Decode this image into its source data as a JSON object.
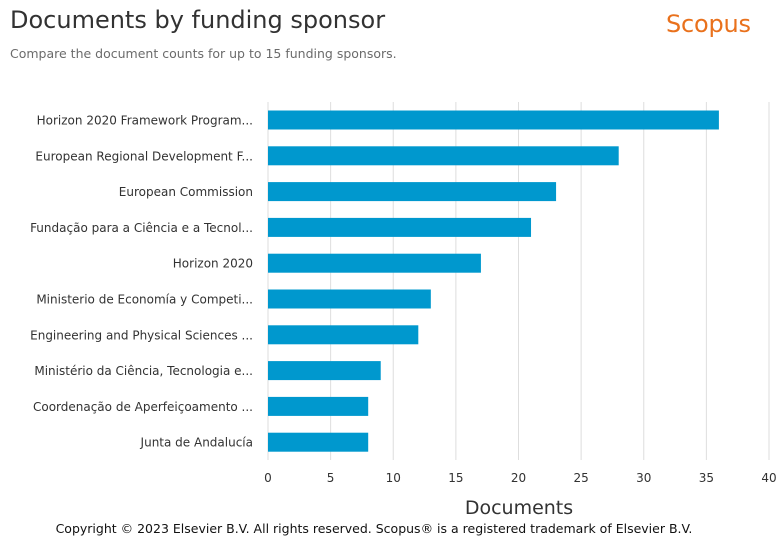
{
  "header": {
    "title": "Documents by funding sponsor",
    "subtitle": "Compare the document counts for up to 15 funding sponsors.",
    "logo": "Scopus"
  },
  "footer": {
    "copyright": "Copyright © 2023 Elsevier B.V. All rights reserved. Scopus® is a registered trademark of Elsevier B.V."
  },
  "colors": {
    "bar": "#0098ce",
    "grid": "#dedede",
    "logo": "#e9711c"
  },
  "chart_data": {
    "type": "bar",
    "orientation": "horizontal",
    "title": "Documents by funding sponsor",
    "subtitle": "Compare the document counts for up to 15 funding sponsors.",
    "xlabel": "Documents",
    "ylabel": "",
    "xlim": [
      0,
      40
    ],
    "xticks": [
      0,
      5,
      10,
      15,
      20,
      25,
      30,
      35,
      40
    ],
    "grid": true,
    "categories": [
      "Horizon 2020 Framework Program...",
      "European Regional Development F...",
      "European Commission",
      "Fundação para a Ciência e a Tecnol...",
      "Horizon 2020",
      "Ministerio de Economía y Competi...",
      "Engineering and Physical Sciences ...",
      "Ministério da Ciência, Tecnologia e...",
      "Coordenação de Aperfeiçoamento ...",
      "Junta de Andalucía"
    ],
    "values": [
      36,
      28,
      23,
      21,
      17,
      13,
      12,
      9,
      8,
      8
    ]
  }
}
